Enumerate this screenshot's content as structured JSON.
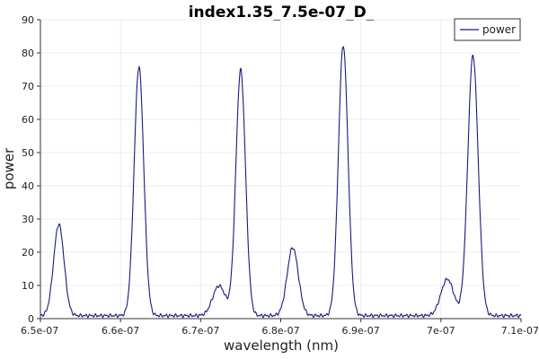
{
  "chart_data": {
    "type": "line",
    "title": "index1.35_7.5e-07_D_",
    "xlabel": "wavelength (nm)",
    "ylabel": "power",
    "xlim": [
      6.5e-07,
      7.1e-07
    ],
    "ylim": [
      0,
      90
    ],
    "x_ticks": [
      "6.5e-07",
      "6.6e-07",
      "6.7e-07",
      "6.8e-07",
      "6.9e-07",
      "7e-07",
      "7.1e-07"
    ],
    "x_tick_values": [
      6.5e-07,
      6.6e-07,
      6.7e-07,
      6.8e-07,
      6.9e-07,
      7e-07,
      7.1e-07
    ],
    "y_ticks": [
      "0",
      "10",
      "20",
      "30",
      "40",
      "50",
      "60",
      "70",
      "80",
      "90"
    ],
    "y_tick_values": [
      0,
      10,
      20,
      30,
      40,
      50,
      60,
      70,
      80,
      90
    ],
    "grid": true,
    "legend_position": "top-right",
    "series": [
      {
        "name": "power",
        "color": "#1a1a80",
        "baseline": 0.9,
        "peaks": [
          {
            "center": 6.523e-07,
            "height": 27.5,
            "width": 6.5e-10
          },
          {
            "center": 6.623e-07,
            "height": 75.0,
            "width": 6e-10
          },
          {
            "center": 6.723e-07,
            "height": 9.0,
            "width": 8e-10
          },
          {
            "center": 6.75e-07,
            "height": 74.0,
            "width": 6e-10
          },
          {
            "center": 6.815e-07,
            "height": 20.5,
            "width": 7e-10
          },
          {
            "center": 6.878e-07,
            "height": 81.5,
            "width": 6e-10
          },
          {
            "center": 7.008e-07,
            "height": 11.0,
            "width": 8e-10
          },
          {
            "center": 7.04e-07,
            "height": 78.5,
            "width": 6.5e-10
          }
        ]
      }
    ]
  }
}
